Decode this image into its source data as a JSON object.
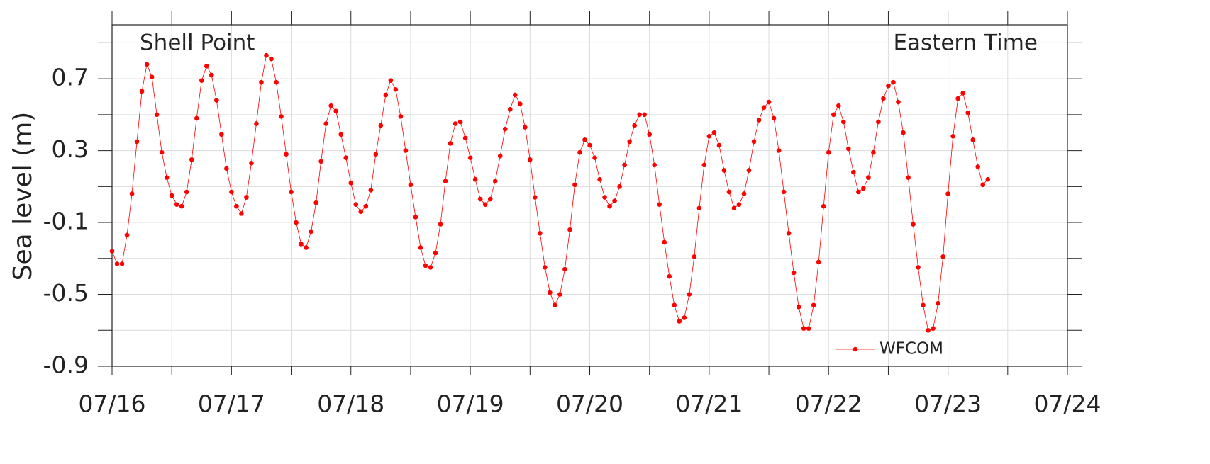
{
  "chart_data": {
    "type": "line",
    "annotations": [
      "Shell Point",
      "Eastern Time"
    ],
    "ylabel": "Sea level (m)",
    "x": [
      0,
      1,
      2,
      3,
      4,
      5,
      6,
      7,
      8,
      9,
      10,
      11,
      12,
      13,
      14,
      15,
      16,
      17,
      18,
      19,
      20,
      21,
      22,
      23,
      24,
      25,
      26,
      27,
      28,
      29,
      30,
      31,
      32,
      33,
      34,
      35,
      36,
      37,
      38,
      39,
      40,
      41,
      42,
      43,
      44,
      45,
      46,
      47,
      48,
      49,
      50,
      51,
      52,
      53,
      54,
      55,
      56,
      57,
      58,
      59,
      60,
      61,
      62,
      63,
      64,
      65,
      66,
      67,
      68,
      69,
      70,
      71,
      72,
      73,
      74,
      75,
      76,
      77,
      78,
      79,
      80,
      81,
      82,
      83,
      84,
      85,
      86,
      87,
      88,
      89,
      90,
      91,
      92,
      93,
      94,
      95,
      96,
      97,
      98,
      99,
      100,
      101,
      102,
      103,
      104,
      105,
      106,
      107,
      108,
      109,
      110,
      111,
      112,
      113,
      114,
      115,
      116,
      117,
      118,
      119,
      120,
      121,
      122,
      123,
      124,
      125,
      126,
      127,
      128,
      129,
      130,
      131,
      132,
      133,
      134,
      135,
      136,
      137,
      138,
      139,
      140,
      141,
      142,
      143,
      144,
      145,
      146,
      147,
      148,
      149,
      150,
      151,
      152,
      153,
      154,
      155,
      156,
      157,
      158,
      159,
      160,
      161,
      162,
      163,
      164,
      165,
      166,
      167,
      168,
      169,
      170,
      171,
      172,
      173,
      174,
      175,
      176
    ],
    "series": [
      {
        "name": "WFCOM",
        "color": "#ff0000",
        "values": [
          -0.26,
          -0.33,
          -0.33,
          -0.17,
          0.06,
          0.35,
          0.63,
          0.78,
          0.71,
          0.5,
          0.29,
          0.15,
          0.05,
          0.0,
          -0.01,
          0.07,
          0.25,
          0.48,
          0.69,
          0.77,
          0.72,
          0.58,
          0.39,
          0.2,
          0.07,
          -0.01,
          -0.05,
          0.04,
          0.23,
          0.45,
          0.68,
          0.83,
          0.81,
          0.68,
          0.49,
          0.28,
          0.07,
          -0.1,
          -0.22,
          -0.24,
          -0.15,
          0.01,
          0.24,
          0.45,
          0.55,
          0.52,
          0.39,
          0.26,
          0.12,
          0.0,
          -0.04,
          -0.01,
          0.08,
          0.28,
          0.44,
          0.61,
          0.69,
          0.64,
          0.49,
          0.3,
          0.11,
          -0.07,
          -0.24,
          -0.34,
          -0.35,
          -0.27,
          -0.11,
          0.13,
          0.34,
          0.45,
          0.46,
          0.37,
          0.26,
          0.14,
          0.03,
          0.0,
          0.03,
          0.13,
          0.27,
          0.42,
          0.53,
          0.61,
          0.56,
          0.43,
          0.25,
          0.04,
          -0.16,
          -0.35,
          -0.49,
          -0.56,
          -0.5,
          -0.36,
          -0.14,
          0.11,
          0.29,
          0.36,
          0.33,
          0.26,
          0.14,
          0.04,
          -0.01,
          0.02,
          0.1,
          0.22,
          0.35,
          0.44,
          0.5,
          0.5,
          0.39,
          0.22,
          0.0,
          -0.21,
          -0.4,
          -0.56,
          -0.65,
          -0.63,
          -0.5,
          -0.29,
          -0.02,
          0.22,
          0.38,
          0.4,
          0.33,
          0.19,
          0.07,
          -0.02,
          0.0,
          0.06,
          0.19,
          0.35,
          0.47,
          0.54,
          0.57,
          0.48,
          0.3,
          0.07,
          -0.16,
          -0.38,
          -0.57,
          -0.69,
          -0.69,
          -0.56,
          -0.32,
          -0.01,
          0.29,
          0.5,
          0.55,
          0.46,
          0.31,
          0.18,
          0.07,
          0.09,
          0.15,
          0.29,
          0.46,
          0.59,
          0.66,
          0.68,
          0.57,
          0.4,
          0.15,
          -0.11,
          -0.35,
          -0.56,
          -0.7,
          -0.69,
          -0.55,
          -0.29,
          0.06,
          0.38,
          0.59,
          0.62,
          0.51,
          0.36,
          0.21,
          0.11,
          0.14
        ]
      }
    ],
    "xlim": [
      0,
      192
    ],
    "xticks": [
      {
        "value": 0,
        "label": "07/16"
      },
      {
        "value": 24,
        "label": "07/17"
      },
      {
        "value": 48,
        "label": "07/18"
      },
      {
        "value": 72,
        "label": "07/19"
      },
      {
        "value": 96,
        "label": "07/20"
      },
      {
        "value": 120,
        "label": "07/21"
      },
      {
        "value": 144,
        "label": "07/22"
      },
      {
        "value": 168,
        "label": "07/23"
      },
      {
        "value": 192,
        "label": "07/24"
      }
    ],
    "xgrid": [
      0,
      12,
      24,
      36,
      48,
      60,
      72,
      84,
      96,
      108,
      120,
      132,
      144,
      156,
      168,
      180,
      192
    ],
    "ylim": [
      -0.9,
      1.0
    ],
    "yticks": [
      -0.9,
      -0.5,
      -0.1,
      0.3,
      0.7
    ],
    "ygrid": [
      -0.9,
      -0.7,
      -0.5,
      -0.3,
      -0.1,
      0.1,
      0.3,
      0.5,
      0.7,
      0.9
    ],
    "grid": true,
    "legend": "lower right"
  }
}
